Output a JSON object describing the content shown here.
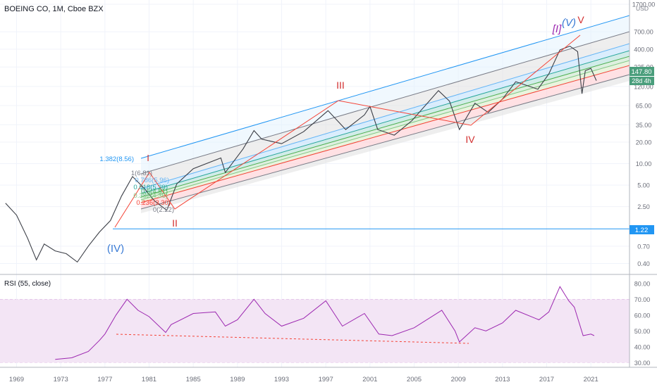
{
  "header": {
    "symbol": "BOEING CO, 1M, Cboe BZX",
    "currency": "USD"
  },
  "price_axis": {
    "ticks": [
      "1700.00",
      "700.00",
      "400.00",
      "225.00",
      "120.00",
      "65.00",
      "35.00",
      "20.00",
      "10.00",
      "5.00",
      "2.50",
      "1.22",
      "0.70",
      "0.40"
    ],
    "badges": [
      {
        "text": "147.80",
        "color": "#4a9e7c"
      },
      {
        "text": "28d 4h",
        "color": "#4a9e7c"
      },
      {
        "text": "1.22",
        "color": "#2196f3"
      }
    ]
  },
  "time_axis": {
    "ticks": [
      "1969",
      "1973",
      "1977",
      "1981",
      "1985",
      "1989",
      "1993",
      "1997",
      "2001",
      "2005",
      "2009",
      "2013",
      "2017",
      "2021"
    ]
  },
  "waves": [
    {
      "text": "(IV)",
      "color": "#3a7bd5"
    },
    {
      "text": "I",
      "color": "#d32f2f"
    },
    {
      "text": "II",
      "color": "#d32f2f"
    },
    {
      "text": "III",
      "color": "#d32f2f"
    },
    {
      "text": "IV",
      "color": "#d32f2f"
    },
    {
      "text": "[I]",
      "color": "#9c27b0"
    },
    {
      "text": "(V)",
      "color": "#3a7bd5"
    },
    {
      "text": "V",
      "color": "#d32f2f"
    }
  ],
  "fib_labels": [
    {
      "text": "1.382(8.56)",
      "color": "#2196f3"
    },
    {
      "text": "1(6.81)",
      "color": "#787b86"
    },
    {
      "text": "0.786(5.96)",
      "color": "#64b5f6"
    },
    {
      "text": "0.618(5.29)",
      "color": "#26a69a"
    },
    {
      "text": "0.5(4.81)",
      "color": "#4caf50"
    },
    {
      "text": "0.382(4.36)",
      "color": "#81c784"
    },
    {
      "text": "0.236(3.30)",
      "color": "#f44336"
    },
    {
      "text": "0(2.22)",
      "color": "#787b86"
    }
  ],
  "rsi_panel": {
    "title": "RSI (55, close)",
    "ticks": [
      "80.00",
      "70.00",
      "60.00",
      "50.00",
      "40.00",
      "30.00"
    ]
  },
  "chart_data": [
    {
      "type": "line",
      "title": "BOEING CO, 1M, Cboe BZX",
      "yscale": "log",
      "ylim": [
        0.33,
        1700
      ],
      "xlim": [
        1967.5,
        2024.5
      ],
      "horizontal_lines": [
        {
          "value": 1.22,
          "color": "#2196f3"
        }
      ],
      "series": [
        {
          "values": [
            [
              1968,
              2.8
            ],
            [
              1969,
              1.9
            ],
            [
              1970,
              0.9
            ],
            [
              1970.8,
              0.45
            ],
            [
              1971.5,
              0.75
            ],
            [
              1972.5,
              0.6
            ],
            [
              1973.5,
              0.55
            ],
            [
              1974.5,
              0.42
            ],
            [
              1975.5,
              0.7
            ],
            [
              1976.5,
              1.1
            ],
            [
              1977.5,
              1.6
            ],
            [
              1978.5,
              3.5
            ],
            [
              1979.5,
              6.6
            ],
            [
              1980.5,
              4.6
            ],
            [
              1981.5,
              3.0
            ],
            [
              1982.6,
              2.22
            ],
            [
              1983.5,
              5.2
            ],
            [
              1985,
              8.5
            ],
            [
              1987.5,
              12
            ],
            [
              1987.9,
              7.5
            ],
            [
              1989.5,
              16
            ],
            [
              1990.5,
              29
            ],
            [
              1991.2,
              22
            ],
            [
              1993,
              19
            ],
            [
              1995,
              28
            ],
            [
              1997.2,
              55
            ],
            [
              1998.8,
              30
            ],
            [
              2000.5,
              48
            ],
            [
              2001,
              63
            ],
            [
              2001.7,
              30
            ],
            [
              2003.2,
              25
            ],
            [
              2004.8,
              40
            ],
            [
              2007.2,
              105
            ],
            [
              2008.2,
              75
            ],
            [
              2009.1,
              30
            ],
            [
              2010.5,
              70
            ],
            [
              2011.7,
              52
            ],
            [
              2013,
              80
            ],
            [
              2014.2,
              140
            ],
            [
              2016.2,
              110
            ],
            [
              2017.2,
              180
            ],
            [
              2018.2,
              390
            ],
            [
              2019.1,
              440
            ],
            [
              2019.8,
              370
            ],
            [
              2020.2,
              95
            ],
            [
              2020.5,
              200
            ],
            [
              2021,
              215
            ],
            [
              2021.5,
              145
            ]
          ]
        }
      ]
    },
    {
      "type": "line",
      "title": "RSI (55, close)",
      "ylim": [
        27,
        83
      ],
      "reference_levels": [
        70,
        30
      ],
      "series": [
        {
          "values": [
            [
              1972.5,
              32
            ],
            [
              1974,
              33
            ],
            [
              1975.5,
              37
            ],
            [
              1976.5,
              44
            ],
            [
              1977,
              48
            ],
            [
              1978,
              60
            ],
            [
              1979,
              70
            ],
            [
              1980,
              63
            ],
            [
              1981,
              59
            ],
            [
              1982.5,
              49
            ],
            [
              1983,
              54
            ],
            [
              1985,
              61
            ],
            [
              1987,
              62
            ],
            [
              1987.9,
              53
            ],
            [
              1989,
              57
            ],
            [
              1990.5,
              70
            ],
            [
              1991.5,
              61
            ],
            [
              1993,
              53
            ],
            [
              1995,
              58
            ],
            [
              1997,
              69
            ],
            [
              1998.5,
              53
            ],
            [
              2000.5,
              61
            ],
            [
              2001.8,
              48
            ],
            [
              2003,
              47
            ],
            [
              2005,
              52
            ],
            [
              2007.5,
              63
            ],
            [
              2008.7,
              50
            ],
            [
              2009.1,
              43
            ],
            [
              2010.5,
              52
            ],
            [
              2011.5,
              50
            ],
            [
              2013,
              55
            ],
            [
              2014.2,
              63
            ],
            [
              2016.3,
              57
            ],
            [
              2017.2,
              62
            ],
            [
              2018.2,
              78
            ],
            [
              2019,
              69
            ],
            [
              2019.5,
              65
            ],
            [
              2020.3,
              47
            ],
            [
              2021,
              48
            ],
            [
              2021.3,
              47
            ]
          ]
        }
      ]
    }
  ]
}
